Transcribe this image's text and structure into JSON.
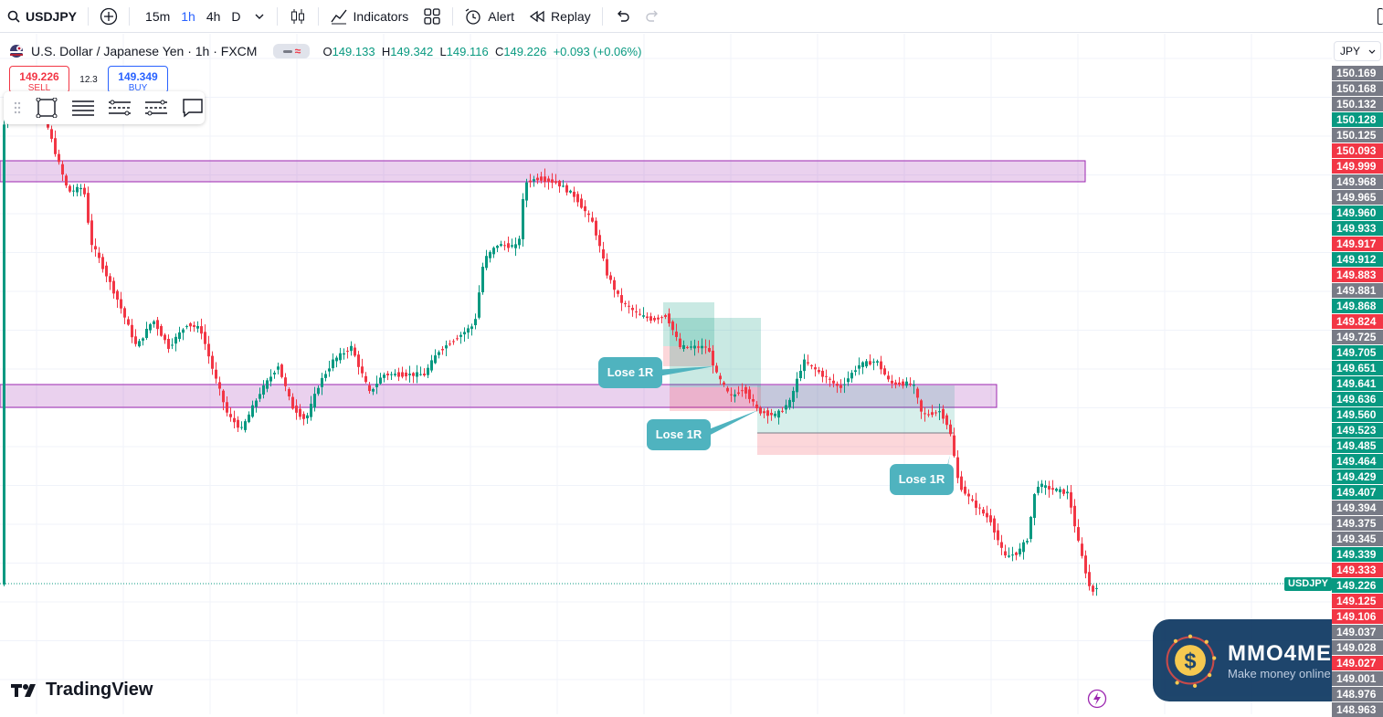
{
  "toolbar": {
    "symbol": "USDJPY",
    "timeframes": [
      "15m",
      "1h",
      "4h",
      "D"
    ],
    "active_timeframe": "1h",
    "indicators_label": "Indicators",
    "alert_label": "Alert",
    "replay_label": "Replay"
  },
  "legend": {
    "title": "U.S. Dollar / Japanese Yen · 1h · FXCM",
    "open_label": "O",
    "open": "149.133",
    "high_label": "H",
    "high": "149.342",
    "low_label": "L",
    "low": "149.116",
    "close_label": "C",
    "close": "149.226",
    "change": "+0.093 (+0.06%)"
  },
  "trade": {
    "sell_price": "149.226",
    "sell_label": "SELL",
    "spread": "12.3",
    "buy_price": "149.349",
    "buy_label": "BUY"
  },
  "currency": "JPY",
  "symbol_tag": "USDJPY",
  "price_labels": [
    {
      "text": "150.169",
      "color": "#787b86"
    },
    {
      "text": "150.168",
      "color": "#787b86"
    },
    {
      "text": "150.132",
      "color": "#787b86"
    },
    {
      "text": "150.128",
      "color": "#089981"
    },
    {
      "text": "150.125",
      "color": "#787b86"
    },
    {
      "text": "150.093",
      "color": "#f23645"
    },
    {
      "text": "149.999",
      "color": "#f23645"
    },
    {
      "text": "149.968",
      "color": "#787b86"
    },
    {
      "text": "149.965",
      "color": "#787b86"
    },
    {
      "text": "149.960",
      "color": "#089981"
    },
    {
      "text": "149.933",
      "color": "#089981"
    },
    {
      "text": "149.917",
      "color": "#f23645"
    },
    {
      "text": "149.912",
      "color": "#089981"
    },
    {
      "text": "149.883",
      "color": "#f23645"
    },
    {
      "text": "149.881",
      "color": "#787b86"
    },
    {
      "text": "149.868",
      "color": "#089981"
    },
    {
      "text": "149.824",
      "color": "#f23645"
    },
    {
      "text": "149.725",
      "color": "#787b86"
    },
    {
      "text": "149.705",
      "color": "#089981"
    },
    {
      "text": "149.651",
      "color": "#089981"
    },
    {
      "text": "149.641",
      "color": "#089981"
    },
    {
      "text": "149.636",
      "color": "#089981"
    },
    {
      "text": "149.560",
      "color": "#089981"
    },
    {
      "text": "149.523",
      "color": "#089981"
    },
    {
      "text": "149.485",
      "color": "#089981"
    },
    {
      "text": "149.464",
      "color": "#089981"
    },
    {
      "text": "149.429",
      "color": "#089981"
    },
    {
      "text": "149.407",
      "color": "#089981"
    },
    {
      "text": "149.394",
      "color": "#787b86"
    },
    {
      "text": "149.375",
      "color": "#787b86"
    },
    {
      "text": "149.345",
      "color": "#787b86"
    },
    {
      "text": "149.339",
      "color": "#089981"
    },
    {
      "text": "149.333",
      "color": "#f23645"
    },
    {
      "text": "149.226",
      "color": "#089981"
    },
    {
      "text": "149.125",
      "color": "#f23645"
    },
    {
      "text": "149.106",
      "color": "#f23645"
    },
    {
      "text": "149.037",
      "color": "#787b86"
    },
    {
      "text": "149.028",
      "color": "#787b86"
    },
    {
      "text": "149.027",
      "color": "#f23645"
    },
    {
      "text": "149.001",
      "color": "#787b86"
    },
    {
      "text": "148.976",
      "color": "#787b86"
    },
    {
      "text": "148.963",
      "color": "#787b86"
    }
  ],
  "callouts": [
    "Lose 1R",
    "Lose 1R",
    "Lose 1R"
  ],
  "brand": "TradingView",
  "watermark": {
    "title": "MMO4ME",
    "subtitle": "Make money online"
  }
}
